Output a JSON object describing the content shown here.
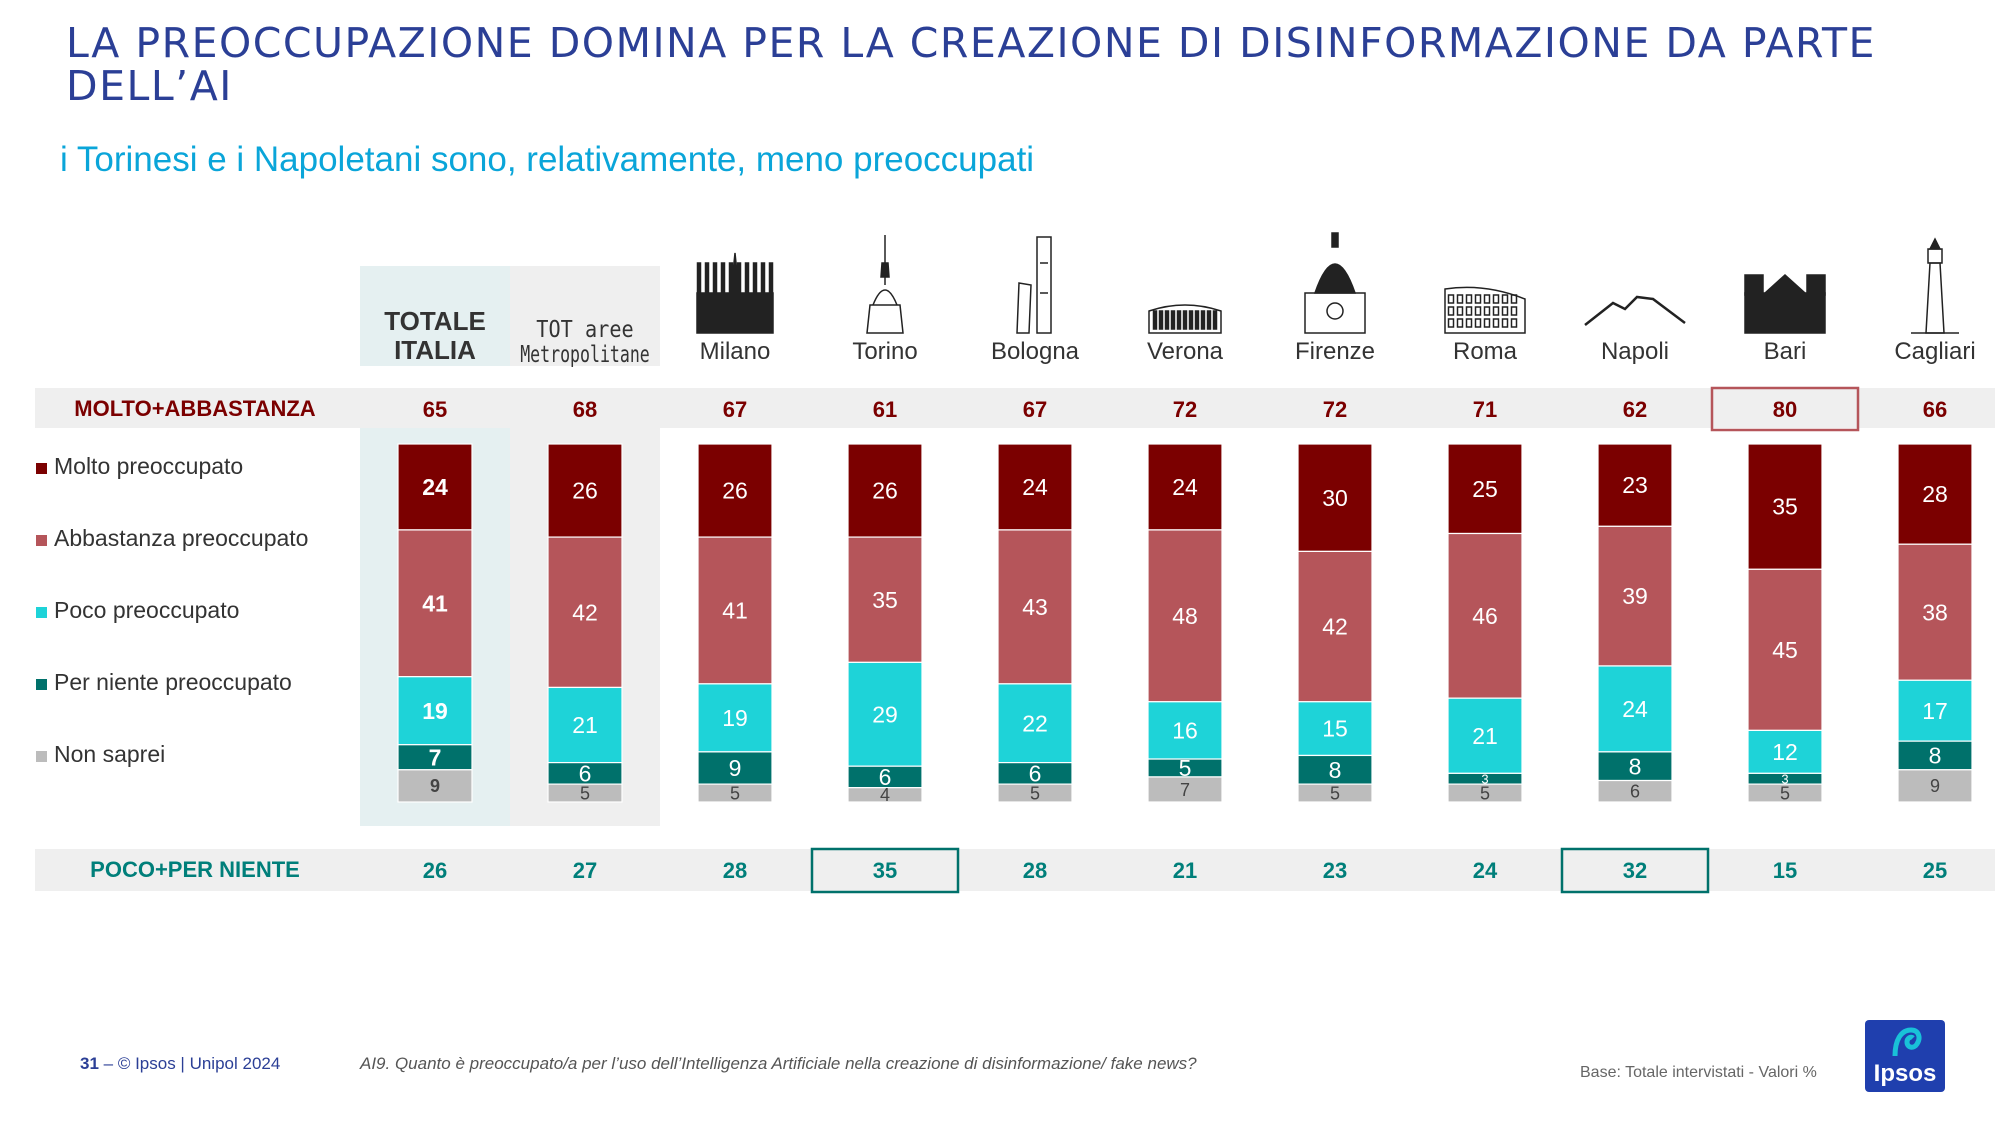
{
  "title": "LA PREOCCUPAZIONE DOMINA PER LA CREAZIONE DI DISINFORMAZIONE DA PARTE DELL’AI",
  "subtitle": "i Torinesi e i Napoletani sono, relativamente, meno preoccupati",
  "colors": {
    "molto": "#7b0000",
    "abbastanza": "#b5555a",
    "poco": "#1ed3d8",
    "per_niente": "#00716b",
    "non_saprei": "#bcbcbc",
    "top_label": "#7b0000",
    "bottom_label": "#007f7a",
    "band": "#efefef",
    "totale_bg": "#e5f0f1",
    "tot_aree_bg": "#efefef"
  },
  "chart_data": {
    "type": "stacked-bar",
    "categories": [
      "TOTALE ITALIA",
      "TOT aree Metropolitane",
      "Milano",
      "Torino",
      "Bologna",
      "Verona",
      "Firenze",
      "Roma",
      "Napoli",
      "Bari",
      "Cagliari"
    ],
    "category_label_lines": [
      [
        "TOTALE",
        "ITALIA"
      ],
      [
        "TOT aree",
        "Metropolitane"
      ],
      [
        "Milano"
      ],
      [
        "Torino"
      ],
      [
        "Bologna"
      ],
      [
        "Verona"
      ],
      [
        "Firenze"
      ],
      [
        "Roma"
      ],
      [
        "Napoli"
      ],
      [
        "Bari"
      ],
      [
        "Cagliari"
      ]
    ],
    "category_icons": [
      "",
      "",
      "milan-cathedral-icon",
      "mole-antonelliana-icon",
      "bologna-towers-icon",
      "verona-arena-icon",
      "florence-duomo-icon",
      "colosseum-icon",
      "vesuvius-icon",
      "bari-basilica-icon",
      "lighthouse-icon"
    ],
    "series": [
      {
        "name": "Molto preoccupato",
        "key": "molto",
        "values": [
          24,
          26,
          26,
          26,
          24,
          24,
          30,
          25,
          23,
          35,
          28
        ]
      },
      {
        "name": "Abbastanza preoccupato",
        "key": "abbastanza",
        "values": [
          41,
          42,
          41,
          35,
          43,
          48,
          42,
          46,
          39,
          45,
          38
        ]
      },
      {
        "name": "Poco preoccupato",
        "key": "poco",
        "values": [
          19,
          21,
          19,
          29,
          22,
          16,
          15,
          21,
          24,
          12,
          17
        ]
      },
      {
        "name": "Per niente preoccupato",
        "key": "per_niente",
        "values": [
          7,
          6,
          9,
          6,
          6,
          5,
          8,
          3,
          8,
          3,
          8
        ]
      },
      {
        "name": "Non saprei",
        "key": "non_saprei",
        "values": [
          9,
          5,
          5,
          4,
          5,
          7,
          5,
          5,
          6,
          5,
          9
        ]
      }
    ],
    "summary_top": {
      "label": "MOLTO+ABBASTANZA",
      "values": [
        65,
        68,
        67,
        61,
        67,
        72,
        72,
        71,
        62,
        80,
        66
      ],
      "highlight": [
        9
      ]
    },
    "summary_bottom": {
      "label": "POCO+PER NIENTE",
      "values": [
        26,
        27,
        28,
        35,
        28,
        21,
        23,
        24,
        32,
        15,
        25
      ],
      "highlight": [
        3,
        8
      ]
    },
    "unit": "%"
  },
  "footer": {
    "page_number": "31",
    "source": " – © Ipsos | Unipol  2024",
    "question": "AI9. Quanto è preoccupato/a per l’uso dell’Intelligenza Artificiale nella creazione di disinformazione/ fake news?",
    "base": "Base: Totale intervistati  - Valori %"
  },
  "logo": {
    "text": "Ipsos"
  }
}
